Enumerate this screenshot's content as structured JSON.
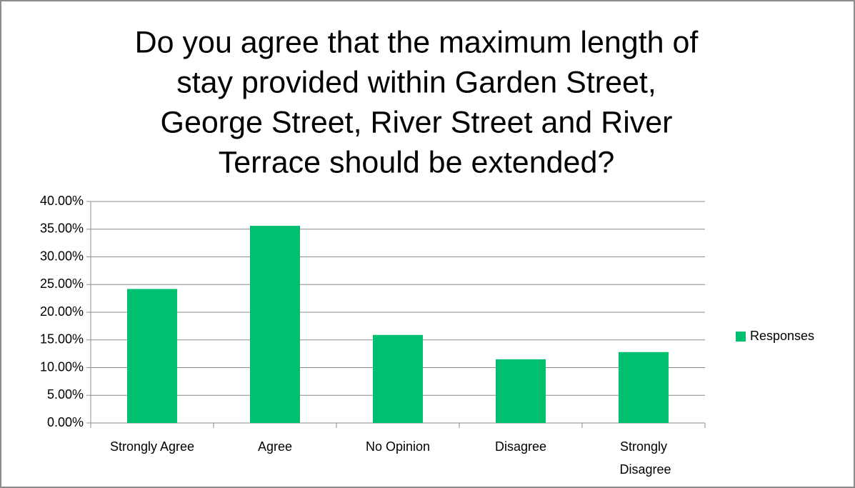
{
  "chart_data": {
    "type": "bar",
    "title": [
      "Do you agree that the maximum length of",
      "stay provided within Garden Street,",
      "George Street, River Street and River",
      "Terrace should be extended?"
    ],
    "categories": [
      "Strongly Agree",
      "Agree",
      "No Opinion",
      "Disagree",
      "Strongly Disagree"
    ],
    "series": [
      {
        "name": "Responses",
        "color": "#00bf6f",
        "values": [
          24.2,
          35.6,
          15.9,
          11.5,
          12.8
        ]
      }
    ],
    "ylim": [
      0,
      40
    ],
    "yticks": [
      {
        "value": 0,
        "label": "0.00%"
      },
      {
        "value": 5,
        "label": "5.00%"
      },
      {
        "value": 10,
        "label": "10.00%"
      },
      {
        "value": 15,
        "label": "15.00%"
      },
      {
        "value": 20,
        "label": "20.00%"
      },
      {
        "value": 25,
        "label": "25.00%"
      },
      {
        "value": 30,
        "label": "30.00%"
      },
      {
        "value": 35,
        "label": "35.00%"
      },
      {
        "value": 40,
        "label": "40.00%"
      }
    ],
    "grid": true,
    "legend": "right"
  }
}
